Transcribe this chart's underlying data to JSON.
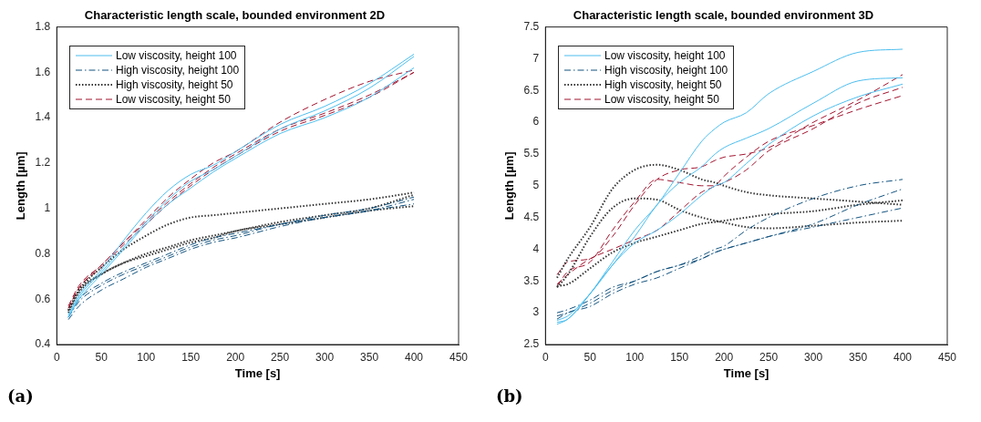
{
  "chart_data": [
    {
      "type": "line",
      "title": "Characteristic length scale, bounded environment 2D",
      "xlabel": "Time [s]",
      "ylabel": "Length [µm]",
      "annotations": [
        "(a)"
      ],
      "x": [
        13,
        25,
        50,
        75,
        100,
        125,
        150,
        175,
        200,
        250,
        300,
        350,
        400
      ],
      "xlim": [
        0,
        450
      ],
      "xticks": [
        0,
        50,
        100,
        150,
        200,
        250,
        300,
        350,
        400,
        450
      ],
      "ylim": [
        0.4,
        1.8
      ],
      "yticks": [
        0.4,
        0.6,
        0.8,
        1,
        1.2,
        1.4,
        1.6,
        1.8
      ],
      "grid": false,
      "legend": "top left",
      "marker": "none",
      "series": [
        {
          "name": "Low viscosity, height 100",
          "color": "#4dbeee",
          "line_style": "solid",
          "values": [
            0.53,
            0.62,
            0.73,
            0.86,
            0.98,
            1.08,
            1.15,
            1.19,
            1.25,
            1.37,
            1.45,
            1.55,
            1.68
          ]
        },
        {
          "color": "#4dbeee",
          "line_style": "solid",
          "values": [
            0.52,
            0.61,
            0.72,
            0.83,
            0.94,
            1.04,
            1.12,
            1.17,
            1.23,
            1.35,
            1.43,
            1.53,
            1.67
          ]
        },
        {
          "color": "#4dbeee",
          "line_style": "solid",
          "values": [
            0.52,
            0.6,
            0.71,
            0.82,
            0.93,
            1.02,
            1.09,
            1.16,
            1.22,
            1.33,
            1.4,
            1.49,
            1.62
          ]
        },
        {
          "name": "High viscosity, height 100",
          "color": "#13537f",
          "line_style": "dashdot",
          "values": [
            0.52,
            0.6,
            0.67,
            0.72,
            0.76,
            0.8,
            0.84,
            0.87,
            0.89,
            0.93,
            0.97,
            1,
            1.05
          ]
        },
        {
          "color": "#13537f",
          "line_style": "dashdot",
          "values": [
            0.52,
            0.59,
            0.66,
            0.71,
            0.75,
            0.79,
            0.83,
            0.86,
            0.88,
            0.93,
            0.96,
            0.99,
            1.04
          ]
        },
        {
          "color": "#13537f",
          "line_style": "dashdot",
          "values": [
            0.51,
            0.57,
            0.64,
            0.69,
            0.74,
            0.78,
            0.82,
            0.85,
            0.87,
            0.92,
            0.96,
            0.99,
            1.02
          ]
        },
        {
          "name": "High viscosity, height 50",
          "color": "#333333",
          "line_style": "dotted",
          "values": [
            0.55,
            0.64,
            0.74,
            0.82,
            0.88,
            0.93,
            0.96,
            0.97,
            0.98,
            1,
            1.02,
            1.04,
            1.07
          ]
        },
        {
          "color": "#333333",
          "line_style": "dotted",
          "values": [
            0.54,
            0.63,
            0.71,
            0.76,
            0.8,
            0.83,
            0.86,
            0.88,
            0.9,
            0.94,
            0.97,
            1,
            1.06
          ]
        },
        {
          "color": "#333333",
          "line_style": "dotted",
          "values": [
            0.55,
            0.64,
            0.71,
            0.76,
            0.79,
            0.82,
            0.85,
            0.87,
            0.9,
            0.93,
            0.96,
            0.99,
            1.01
          ]
        },
        {
          "name": "Low viscosity, height 50",
          "color": "#a2142f",
          "line_style": "dashed",
          "values": [
            0.56,
            0.65,
            0.75,
            0.85,
            0.95,
            1.05,
            1.13,
            1.2,
            1.25,
            1.38,
            1.48,
            1.56,
            1.61
          ]
        },
        {
          "color": "#a2142f",
          "line_style": "dashed",
          "values": [
            0.57,
            0.66,
            0.75,
            0.85,
            0.94,
            1.03,
            1.11,
            1.18,
            1.24,
            1.35,
            1.42,
            1.5,
            1.6
          ]
        },
        {
          "color": "#a2142f",
          "line_style": "dashed",
          "values": [
            0.56,
            0.65,
            0.74,
            0.84,
            0.93,
            1.02,
            1.1,
            1.17,
            1.23,
            1.34,
            1.41,
            1.49,
            1.6
          ]
        }
      ]
    },
    {
      "type": "line",
      "title": "Characteristic length scale, bounded environment 3D",
      "xlabel": "Time [s]",
      "ylabel": "Length [µm]",
      "annotations": [
        "(b)"
      ],
      "x": [
        13,
        25,
        50,
        75,
        100,
        125,
        150,
        175,
        190,
        200,
        225,
        250,
        300,
        350,
        400
      ],
      "xlim": [
        0,
        450
      ],
      "xticks": [
        0,
        50,
        100,
        150,
        200,
        250,
        300,
        350,
        400,
        450
      ],
      "ylim": [
        2.5,
        7.5
      ],
      "yticks": [
        2.5,
        3,
        3.5,
        4,
        4.5,
        5,
        5.5,
        6,
        6.5,
        7,
        7.5
      ],
      "grid": false,
      "legend": "top left",
      "marker": "none",
      "series": [
        {
          "name": "Low viscosity, height 100",
          "color": "#4dbeee",
          "line_style": "solid",
          "values": [
            2.85,
            2.9,
            3.3,
            3.8,
            4.3,
            4.7,
            5.2,
            5.7,
            5.9,
            6,
            6.15,
            6.45,
            6.8,
            7.1,
            7.15
          ]
        },
        {
          "color": "#4dbeee",
          "line_style": "solid",
          "values": [
            2.82,
            2.9,
            3.3,
            3.75,
            4.2,
            4.7,
            5.05,
            5.3,
            5.5,
            5.6,
            5.75,
            5.9,
            6.3,
            6.65,
            6.7
          ]
        },
        {
          "color": "#4dbeee",
          "line_style": "solid",
          "values": [
            2.88,
            2.95,
            3.3,
            3.75,
            4.1,
            4.3,
            4.55,
            4.85,
            5,
            5.05,
            5.35,
            5.65,
            6.1,
            6.4,
            6.6
          ]
        },
        {
          "name": "High viscosity, height 100",
          "color": "#13537f",
          "line_style": "dashdot",
          "values": [
            3,
            3.05,
            3.2,
            3.4,
            3.5,
            3.65,
            3.75,
            3.9,
            4,
            4.05,
            4.3,
            4.5,
            4.8,
            5,
            5.1
          ]
        },
        {
          "color": "#13537f",
          "line_style": "dashdot",
          "values": [
            2.95,
            3,
            3.15,
            3.35,
            3.5,
            3.65,
            3.75,
            3.85,
            3.95,
            4,
            4.1,
            4.2,
            4.4,
            4.7,
            4.95
          ]
        },
        {
          "color": "#13537f",
          "line_style": "dashdot",
          "values": [
            2.9,
            3,
            3.1,
            3.3,
            3.45,
            3.55,
            3.7,
            3.85,
            3.95,
            4,
            4.1,
            4.2,
            4.35,
            4.5,
            4.65
          ]
        },
        {
          "name": "High viscosity, height 50",
          "color": "#333333",
          "line_style": "dotted",
          "values": [
            3.55,
            3.85,
            4.35,
            4.95,
            5.25,
            5.33,
            5.25,
            5.1,
            5.05,
            5,
            4.9,
            4.85,
            4.8,
            4.75,
            4.7
          ]
        },
        {
          "color": "#333333",
          "line_style": "dotted",
          "values": [
            3.4,
            3.6,
            4.2,
            4.65,
            4.8,
            4.78,
            4.62,
            4.5,
            4.45,
            4.42,
            4.35,
            4.33,
            4.37,
            4.42,
            4.45
          ]
        },
        {
          "color": "#333333",
          "line_style": "dotted",
          "values": [
            3.42,
            3.45,
            3.7,
            3.95,
            4.1,
            4.2,
            4.3,
            4.4,
            4.43,
            4.45,
            4.5,
            4.55,
            4.6,
            4.7,
            4.77
          ]
        },
        {
          "name": "Low viscosity, height 50",
          "color": "#a2142f",
          "line_style": "dashed",
          "values": [
            3.6,
            3.8,
            3.85,
            4.2,
            4.7,
            5.1,
            5.25,
            5.3,
            5.4,
            5.45,
            5.5,
            5.6,
            6,
            6.35,
            6.75
          ]
        },
        {
          "color": "#a2142f",
          "line_style": "dashed",
          "values": [
            3.42,
            3.65,
            3.8,
            4.3,
            4.75,
            5.1,
            5.05,
            5,
            5,
            5.05,
            5.25,
            5.55,
            5.9,
            6.3,
            6.55
          ]
        },
        {
          "color": "#a2142f",
          "line_style": "dashed",
          "values": [
            3.45,
            3.6,
            3.85,
            4,
            4.15,
            4.3,
            4.6,
            4.9,
            5,
            5.15,
            5.45,
            5.7,
            5.95,
            6.2,
            6.42
          ]
        }
      ]
    }
  ]
}
